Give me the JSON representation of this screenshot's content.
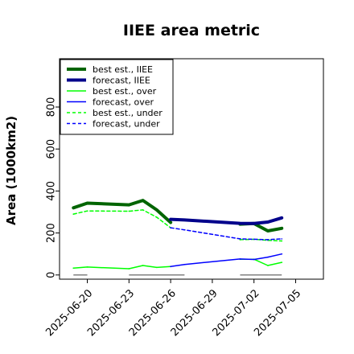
{
  "chart_data": {
    "type": "line",
    "title": "IIEE area metric",
    "ylabel": "Area (1000km2)",
    "xlabel": "",
    "xlim": [
      "2025-06-18",
      "2025-07-07"
    ],
    "ylim": [
      -20,
      1030
    ],
    "yticks": [
      0,
      200,
      400,
      600,
      800
    ],
    "xticks": [
      {
        "date": "2025-06-20",
        "label": "2025-06-20",
        "color": "#000000"
      },
      {
        "date": "2025-06-23",
        "label": "2025-06-23",
        "color": "#000000"
      },
      {
        "date": "2025-06-26",
        "label": "2025-06-26",
        "color": "#228b22"
      },
      {
        "date": "2025-06-29",
        "label": "2025-06-29",
        "color": "#000000"
      },
      {
        "date": "2025-07-02",
        "label": "2025-07-02",
        "color": "#000000"
      },
      {
        "date": "2025-07-05",
        "label": "2025-07-05",
        "color": "#000000"
      }
    ],
    "legend_position": "top-left",
    "grid": false,
    "series": [
      {
        "name": "best est., IIEE",
        "color": "#006400",
        "style": "solid",
        "width": 4,
        "points": [
          [
            "2025-06-19",
            320
          ],
          [
            "2025-06-20",
            342
          ],
          [
            "2025-06-23",
            334
          ],
          [
            "2025-06-24",
            355
          ],
          [
            "2025-06-25",
            310
          ],
          [
            "2025-06-26",
            250
          ]
        ]
      },
      {
        "name": "best est., IIEE",
        "color": "#006400",
        "style": "solid",
        "width": 4,
        "points": [
          [
            "2025-07-01",
            242
          ],
          [
            "2025-07-02",
            245
          ],
          [
            "2025-07-03",
            210
          ],
          [
            "2025-07-04",
            222
          ]
        ]
      },
      {
        "name": "forecast, IIEE",
        "color": "#00008b",
        "style": "solid",
        "width": 4,
        "points": [
          [
            "2025-06-26",
            265
          ],
          [
            "2025-06-27",
            262
          ],
          [
            "2025-07-01",
            246
          ],
          [
            "2025-07-02",
            245
          ],
          [
            "2025-07-03",
            252
          ],
          [
            "2025-07-04",
            272
          ]
        ]
      },
      {
        "name": "best est., over",
        "color": "#00ff00",
        "style": "solid",
        "width": 1.5,
        "points": [
          [
            "2025-06-19",
            33
          ],
          [
            "2025-06-20",
            38
          ],
          [
            "2025-06-23",
            30
          ],
          [
            "2025-06-24",
            45
          ],
          [
            "2025-06-25",
            36
          ],
          [
            "2025-06-26",
            40
          ]
        ]
      },
      {
        "name": "best est., over",
        "color": "#00ff00",
        "style": "solid",
        "width": 1.5,
        "points": [
          [
            "2025-07-01",
            75
          ],
          [
            "2025-07-02",
            75
          ],
          [
            "2025-07-03",
            45
          ],
          [
            "2025-07-04",
            60
          ]
        ]
      },
      {
        "name": "forecast, over",
        "color": "#0000ff",
        "style": "solid",
        "width": 1.5,
        "points": [
          [
            "2025-06-26",
            40
          ],
          [
            "2025-06-27",
            50
          ],
          [
            "2025-07-01",
            76
          ],
          [
            "2025-07-02",
            74
          ],
          [
            "2025-07-03",
            85
          ],
          [
            "2025-07-04",
            100
          ]
        ]
      },
      {
        "name": "best est., under",
        "color": "#00ff00",
        "style": "dashed",
        "width": 1.5,
        "points": [
          [
            "2025-06-19",
            290
          ],
          [
            "2025-06-20",
            305
          ],
          [
            "2025-06-23",
            304
          ],
          [
            "2025-06-24",
            310
          ],
          [
            "2025-06-25",
            275
          ],
          [
            "2025-06-26",
            225
          ]
        ]
      },
      {
        "name": "best est., under",
        "color": "#00ff00",
        "style": "dashed",
        "width": 1.5,
        "points": [
          [
            "2025-07-01",
            168
          ],
          [
            "2025-07-02",
            170
          ],
          [
            "2025-07-03",
            165
          ],
          [
            "2025-07-04",
            162
          ]
        ]
      },
      {
        "name": "forecast, under",
        "color": "#0000ff",
        "style": "dashed",
        "width": 1.5,
        "points": [
          [
            "2025-06-26",
            225
          ],
          [
            "2025-06-27",
            215
          ],
          [
            "2025-07-01",
            172
          ],
          [
            "2025-07-02",
            170
          ],
          [
            "2025-07-03",
            168
          ],
          [
            "2025-07-04",
            172
          ]
        ]
      }
    ],
    "baseline_bars": {
      "color": "#808080",
      "value": 0,
      "ranges": [
        [
          "2025-06-19",
          "2025-06-20"
        ],
        [
          "2025-06-23",
          "2025-06-27"
        ],
        [
          "2025-07-01",
          "2025-07-04"
        ]
      ]
    },
    "legend": [
      {
        "label": "best est., IIEE",
        "color": "#006400",
        "style": "solid",
        "width": 4
      },
      {
        "label": "forecast, IIEE",
        "color": "#00008b",
        "style": "solid",
        "width": 4
      },
      {
        "label": "best est., over",
        "color": "#00ff00",
        "style": "solid",
        "width": 1.5
      },
      {
        "label": "forecast, over",
        "color": "#0000ff",
        "style": "solid",
        "width": 1.5
      },
      {
        "label": "best est., under",
        "color": "#00ff00",
        "style": "dashed",
        "width": 1.5
      },
      {
        "label": "forecast, under",
        "color": "#0000ff",
        "style": "dashed",
        "width": 1.5
      }
    ]
  }
}
